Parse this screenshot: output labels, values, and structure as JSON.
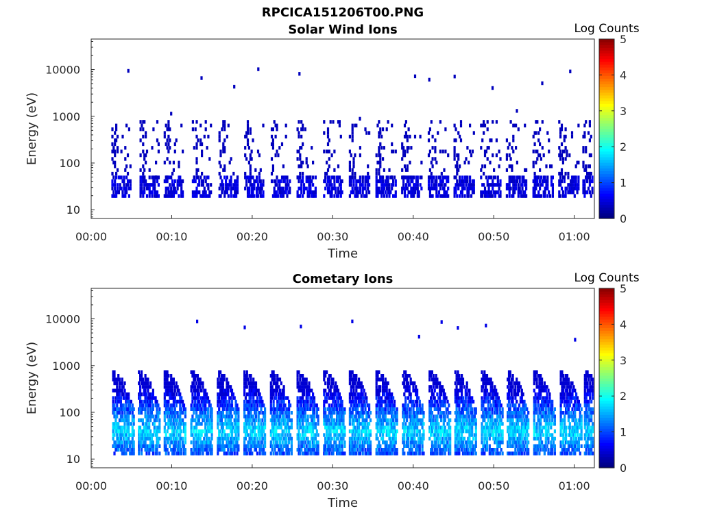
{
  "figure_title": "RPCICA151206T00.PNG",
  "chart_data": [
    {
      "type": "heatmap",
      "title": "Solar Wind Ions",
      "xlabel": "Time",
      "ylabel": "Energy (eV)",
      "x_tick_labels": [
        "00:00",
        "00:10",
        "00:20",
        "00:30",
        "00:40",
        "00:50",
        "01:00"
      ],
      "x_ticks_minutes": [
        0,
        10,
        20,
        30,
        40,
        50,
        60
      ],
      "xlim_minutes": [
        0,
        62.5
      ],
      "y_scale": "log",
      "y_tick_labels": [
        "10",
        "100",
        "1000",
        "10000"
      ],
      "y_ticks": [
        10,
        100,
        1000,
        10000
      ],
      "ylim": [
        6.5,
        45000
      ],
      "colorbar": {
        "label": "Log Counts",
        "range": [
          0,
          5
        ],
        "ticks": [
          0,
          1,
          2,
          3,
          4,
          5
        ],
        "colormap": "jet"
      },
      "sweeps_start_minutes": [
        2.5,
        6.0,
        9.0,
        12.5,
        15.8,
        19.0,
        22.3,
        25.5,
        28.8,
        32.0,
        35.3,
        38.5,
        41.8,
        45.0,
        48.3,
        51.5,
        54.8,
        58.0,
        61.0
      ],
      "low_energy_band_eV": [
        18,
        45
      ],
      "high_energy_band_eV": [
        200,
        700
      ],
      "typical_log_counts": 0.3
    },
    {
      "type": "heatmap",
      "title": "Cometary Ions",
      "xlabel": "Time",
      "ylabel": "Energy (eV)",
      "x_tick_labels": [
        "00:00",
        "00:10",
        "00:20",
        "00:30",
        "00:40",
        "00:50",
        "01:00"
      ],
      "x_ticks_minutes": [
        0,
        10,
        20,
        30,
        40,
        50,
        60
      ],
      "xlim_minutes": [
        0,
        62.5
      ],
      "y_scale": "log",
      "y_tick_labels": [
        "10",
        "100",
        "1000",
        "10000"
      ],
      "y_ticks": [
        10,
        100,
        1000,
        10000
      ],
      "ylim": [
        6.5,
        45000
      ],
      "colorbar": {
        "label": "Log Counts",
        "range": [
          0,
          5
        ],
        "ticks": [
          0,
          1,
          2,
          3,
          4,
          5
        ],
        "colormap": "jet"
      },
      "sweeps_start_minutes": [
        2.6,
        5.8,
        9.0,
        12.3,
        15.6,
        18.9,
        22.2,
        25.5,
        28.8,
        32.0,
        35.3,
        38.6,
        41.9,
        45.1,
        48.4,
        51.6,
        54.9,
        58.2,
        61.2
      ],
      "band_eV": [
        12,
        700
      ],
      "peak_energy_eV": 35,
      "peak_log_counts": 2.0
    }
  ]
}
